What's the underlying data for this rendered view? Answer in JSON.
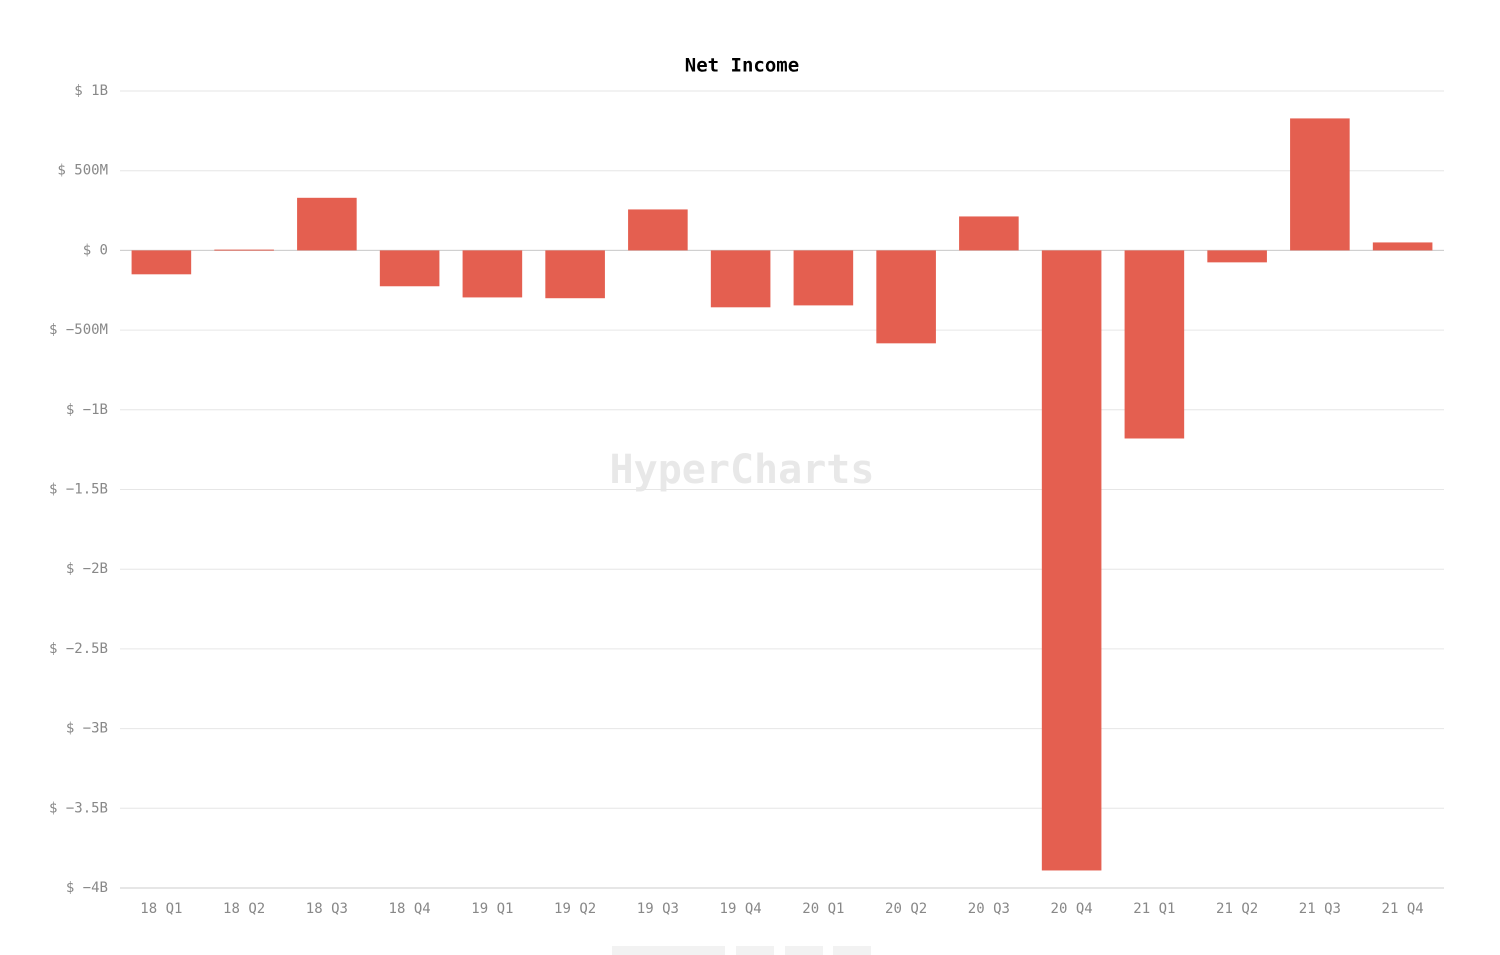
{
  "chart_data": {
    "type": "bar",
    "title": "Net Income",
    "watermark": "HyperCharts",
    "categories": [
      "18 Q1",
      "18 Q2",
      "18 Q3",
      "18 Q4",
      "19 Q1",
      "19 Q2",
      "19 Q3",
      "19 Q4",
      "20 Q1",
      "20 Q2",
      "20 Q3",
      "20 Q4",
      "21 Q1",
      "21 Q2",
      "21 Q3",
      "21 Q4"
    ],
    "values": [
      -150000000,
      5000000,
      330000000,
      -225000000,
      -295000000,
      -300000000,
      257000000,
      -357000000,
      -345000000,
      -583000000,
      213000000,
      -3890000000,
      -1180000000,
      -75000000,
      828000000,
      50000000
    ],
    "color": "#e35a4a",
    "ylim": [
      -4000000000,
      1000000000
    ],
    "yticks": [
      {
        "value": 1000000000,
        "label": "$ 1B"
      },
      {
        "value": 500000000,
        "label": "$ 500M"
      },
      {
        "value": 0,
        "label": "$ 0"
      },
      {
        "value": -500000000,
        "label": "$ −500M"
      },
      {
        "value": -1000000000,
        "label": "$ −1B"
      },
      {
        "value": -1500000000,
        "label": "$ −1.5B"
      },
      {
        "value": -2000000000,
        "label": "$ −2B"
      },
      {
        "value": -2500000000,
        "label": "$ −2.5B"
      },
      {
        "value": -3000000000,
        "label": "$ −3B"
      },
      {
        "value": -3500000000,
        "label": "$ −3.5B"
      },
      {
        "value": -4000000000,
        "label": "$ −4B"
      }
    ],
    "grid": true
  }
}
